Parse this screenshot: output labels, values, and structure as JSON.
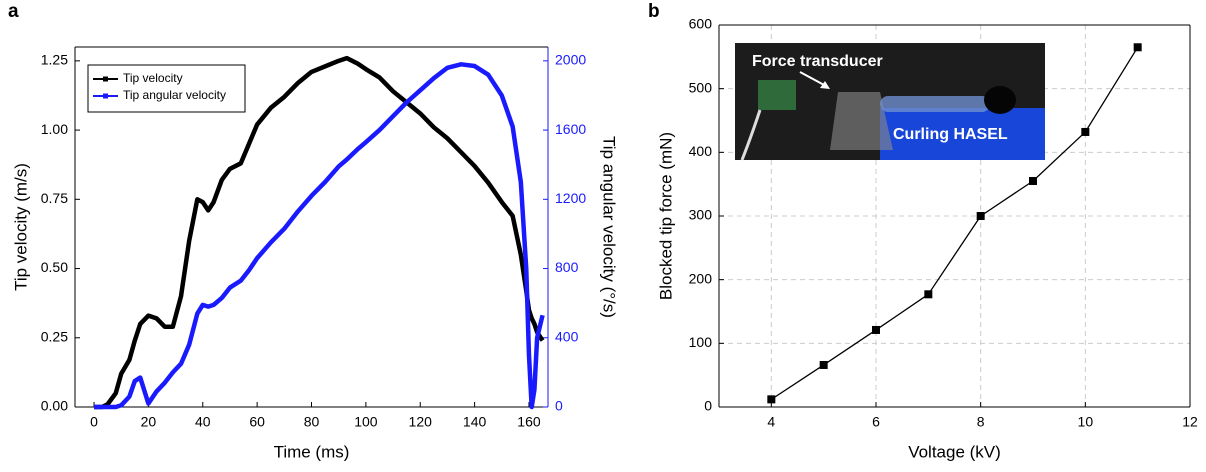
{
  "chart_data": [
    {
      "type": "line",
      "panel_label": "a",
      "xlabel": "Time (ms)",
      "ylabel": "Tip velocity (m/s)",
      "y2label": "Tip angular velocity (°/s)",
      "x": [
        0,
        3,
        5,
        8,
        10,
        13,
        15,
        17,
        20,
        23,
        26,
        29,
        32,
        35,
        38,
        40,
        42,
        44,
        47,
        50,
        54,
        57,
        60,
        65,
        70,
        75,
        80,
        85,
        90,
        93,
        97,
        100,
        105,
        110,
        115,
        120,
        125,
        130,
        135,
        140,
        145,
        150,
        154,
        157,
        159,
        160,
        161,
        162,
        163,
        165
      ],
      "series": [
        {
          "name": "Tip velocity",
          "color": "#000000",
          "values": [
            0,
            0,
            0.01,
            0.05,
            0.12,
            0.17,
            0.24,
            0.3,
            0.33,
            0.32,
            0.29,
            0.29,
            0.4,
            0.6,
            0.75,
            0.74,
            0.71,
            0.74,
            0.82,
            0.86,
            0.88,
            0.95,
            1.02,
            1.08,
            1.12,
            1.17,
            1.21,
            1.23,
            1.25,
            1.26,
            1.24,
            1.22,
            1.19,
            1.14,
            1.1,
            1.06,
            1.01,
            0.97,
            0.92,
            0.87,
            0.81,
            0.74,
            0.69,
            0.55,
            0.42,
            0.35,
            0.32,
            0.3,
            0.27,
            0.24
          ]
        },
        {
          "name": "Tip angular velocity",
          "color": "#1a1aff",
          "axis": "y2",
          "values": [
            0,
            0,
            0,
            0,
            10,
            60,
            150,
            170,
            20,
            90,
            140,
            200,
            250,
            360,
            540,
            590,
            580,
            590,
            630,
            690,
            730,
            790,
            860,
            950,
            1030,
            1130,
            1220,
            1300,
            1390,
            1430,
            1490,
            1530,
            1600,
            1680,
            1760,
            1830,
            1900,
            1960,
            1980,
            1970,
            1920,
            1800,
            1620,
            1300,
            800,
            300,
            0,
            100,
            400,
            530
          ]
        }
      ],
      "xlim": [
        -7,
        167
      ],
      "xticks": [
        0,
        20,
        40,
        60,
        80,
        100,
        120,
        140,
        160
      ],
      "ylim": [
        0,
        1.3
      ],
      "yticks": [
        {
          "value": 0,
          "label": "0.00"
        },
        0.25,
        {
          "value": 0.5,
          "label": "0.50"
        },
        0.75,
        {
          "value": 1,
          "label": "1.00"
        },
        1.25
      ],
      "y2lim": [
        0,
        2080
      ],
      "y2ticks": [
        0,
        400,
        800,
        1200,
        1600,
        2000
      ],
      "grid": false,
      "legend": "upper left"
    },
    {
      "type": "line",
      "panel_label": "b",
      "xlabel": "Voltage (kV)",
      "ylabel": "Blocked tip force (mN)",
      "annotations": [
        "Force transducer",
        "Curling HASEL"
      ],
      "x": [
        4,
        5,
        6,
        7,
        8,
        9,
        10,
        11
      ],
      "series": [
        {
          "color": "#000000",
          "marker": "square",
          "values": [
            12,
            66,
            121,
            177,
            300,
            355,
            432,
            565
          ]
        }
      ],
      "xlim": [
        3,
        12
      ],
      "xticks": [
        4,
        6,
        8,
        10,
        12
      ],
      "ylim": [
        0,
        600
      ],
      "yticks": [
        0,
        100,
        200,
        300,
        400,
        500,
        600
      ],
      "grid": true
    }
  ]
}
